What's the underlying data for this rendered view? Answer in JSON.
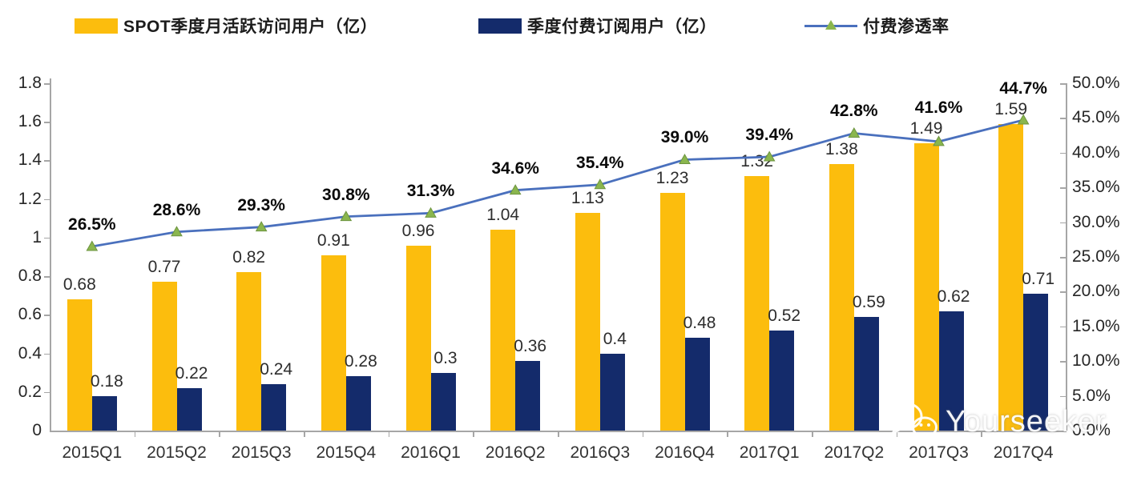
{
  "chart_data": {
    "type": "combo_bar_line",
    "title": "",
    "legend_position": "top",
    "grid": false,
    "categories": [
      "2015Q1",
      "2015Q2",
      "2015Q3",
      "2015Q4",
      "2016Q1",
      "2016Q2",
      "2016Q3",
      "2016Q4",
      "2017Q1",
      "2017Q2",
      "2017Q3",
      "2017Q4"
    ],
    "series": [
      {
        "name": "SPOT季度月活跃访问用户（亿）",
        "type": "bar",
        "axis": "left",
        "color": "#fcbd0d",
        "values": [
          0.68,
          0.77,
          0.82,
          0.91,
          0.96,
          1.04,
          1.13,
          1.23,
          1.32,
          1.38,
          1.49,
          1.59
        ],
        "labels": [
          "0.68",
          "0.77",
          "0.82",
          "0.91",
          "0.96",
          "1.04",
          "1.13",
          "1.23",
          "1.32",
          "1.38",
          "1.49",
          "1.59"
        ]
      },
      {
        "name": "季度付费订阅用户（亿）",
        "type": "bar",
        "axis": "left",
        "color": "#142b6b",
        "values": [
          0.18,
          0.22,
          0.24,
          0.28,
          0.3,
          0.36,
          0.4,
          0.48,
          0.52,
          0.59,
          0.62,
          0.71
        ],
        "labels": [
          "0.18",
          "0.22",
          "0.24",
          "0.28",
          "0.3",
          "0.36",
          "0.4",
          "0.48",
          "0.52",
          "0.59",
          "0.62",
          "0.71"
        ]
      },
      {
        "name": "付费渗透率",
        "type": "line",
        "axis": "right",
        "color": "#4a70bd",
        "marker": "triangle",
        "marker_color": "#8ab64e",
        "values": [
          26.5,
          28.6,
          29.3,
          30.8,
          31.3,
          34.6,
          35.4,
          39.0,
          39.4,
          42.8,
          41.6,
          44.7
        ],
        "labels": [
          "26.5%",
          "28.6%",
          "29.3%",
          "30.8%",
          "31.3%",
          "34.6%",
          "35.4%",
          "39.0%",
          "39.4%",
          "42.8%",
          "41.6%",
          "44.7%"
        ]
      }
    ],
    "left_axis": {
      "min": 0,
      "max": 1.8,
      "step": 0.2,
      "ticks": [
        "0",
        "0.2",
        "0.4",
        "0.6",
        "0.8",
        "1",
        "1.2",
        "1.4",
        "1.6",
        "1.8"
      ]
    },
    "right_axis": {
      "min": 0,
      "max": 50,
      "step": 5,
      "ticks": [
        "0.0%",
        "5.0%",
        "10.0%",
        "15.0%",
        "20.0%",
        "25.0%",
        "30.0%",
        "35.0%",
        "40.0%",
        "45.0%",
        "50.0%"
      ]
    }
  },
  "watermark": {
    "text": "Yourseeker"
  }
}
